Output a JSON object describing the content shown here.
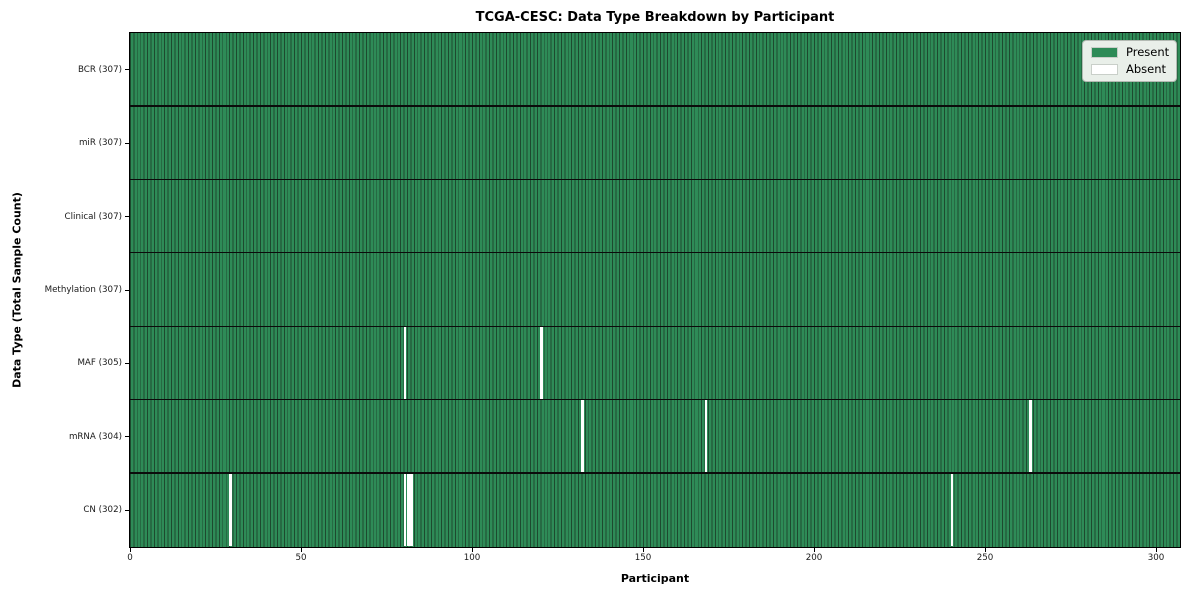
{
  "figure": {
    "title": "TCGA-CESC: Data Type Breakdown by Participant",
    "xlabel": "Participant",
    "ylabel": "Data Type (Total Sample Count)"
  },
  "chart_data": {
    "type": "heatmap",
    "title": "TCGA-CESC: Data Type Breakdown by Participant",
    "xlabel": "Participant",
    "ylabel": "Data Type (Total Sample Count)",
    "n_participants": 307,
    "x_ticks": [
      0,
      50,
      100,
      150,
      200,
      250,
      300
    ],
    "x_range": [
      0,
      307
    ],
    "grid": false,
    "legend_position": "upper right",
    "legend_items": [
      {
        "label": "Present",
        "color": "#2e8b57"
      },
      {
        "label": "Absent",
        "color": "#ffffff"
      }
    ],
    "colors": {
      "present": "#2e8b57",
      "absent": "#ffffff",
      "cell_edge": "#1d4a2f",
      "row_separator": "#0b0b0b"
    },
    "rows": [
      {
        "label": "BCR (307)",
        "data_type": "BCR",
        "present_count": 307,
        "absent_participants": []
      },
      {
        "label": "miR (307)",
        "data_type": "miR",
        "present_count": 307,
        "absent_participants": []
      },
      {
        "label": "Clinical (307)",
        "data_type": "Clinical",
        "present_count": 307,
        "absent_participants": []
      },
      {
        "label": "Methylation (307)",
        "data_type": "Methylation",
        "present_count": 307,
        "absent_participants": []
      },
      {
        "label": "MAF (305)",
        "data_type": "MAF",
        "present_count": 305,
        "absent_participants": [
          80,
          120
        ]
      },
      {
        "label": "mRNA (304)",
        "data_type": "mRNA",
        "present_count": 304,
        "absent_participants": [
          132,
          168,
          263
        ]
      },
      {
        "label": "CN (302)",
        "data_type": "CN",
        "present_count": 302,
        "absent_participants": [
          29,
          80,
          81,
          82,
          240
        ]
      }
    ]
  }
}
